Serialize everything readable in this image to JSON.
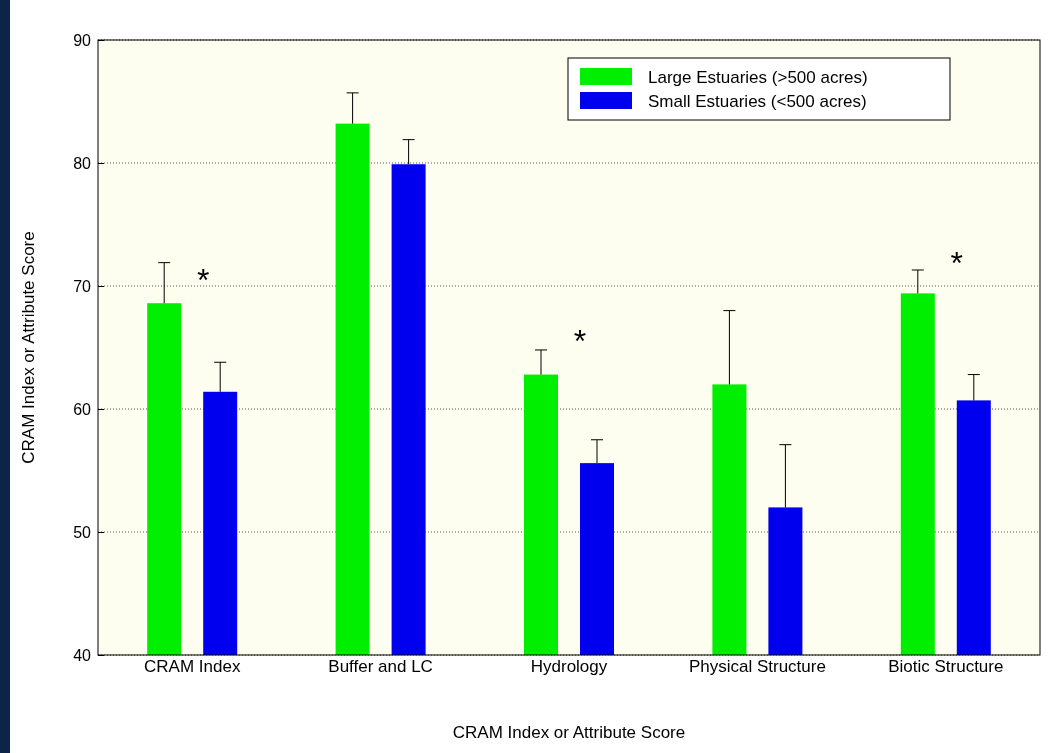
{
  "chart_data": {
    "type": "bar",
    "xlabel": "CRAM Index or Attribute Score",
    "ylabel": "CRAM Index or Attribute Score",
    "categories": [
      "CRAM Index",
      "Buffer and LC",
      "Hydrology",
      "Physical Structure",
      "Biotic Structure"
    ],
    "series": [
      {
        "name": "Large Estuaries (>500 acres)",
        "color": "#00ee00",
        "values": [
          68.6,
          83.2,
          62.8,
          62.0,
          69.4
        ],
        "errors": [
          [
            68.6,
            71.9
          ],
          [
            83.2,
            85.7
          ],
          [
            62.8,
            64.8
          ],
          [
            62.0,
            68.0
          ],
          [
            69.4,
            71.3
          ]
        ]
      },
      {
        "name": "Small Estuaries (<500 acres)",
        "color": "#0000ee",
        "values": [
          61.4,
          79.9,
          55.6,
          52.0,
          60.7
        ],
        "errors": [
          [
            61.4,
            63.8
          ],
          [
            79.9,
            81.9
          ],
          [
            55.6,
            57.5
          ],
          [
            52.0,
            57.1
          ],
          [
            60.7,
            62.8
          ]
        ]
      }
    ],
    "ylim": [
      40,
      90
    ],
    "yticks": [
      40,
      50,
      60,
      70,
      80,
      90
    ],
    "grid": "y",
    "legend": "top right",
    "annotations": [
      "*",
      "*",
      "*"
    ]
  }
}
